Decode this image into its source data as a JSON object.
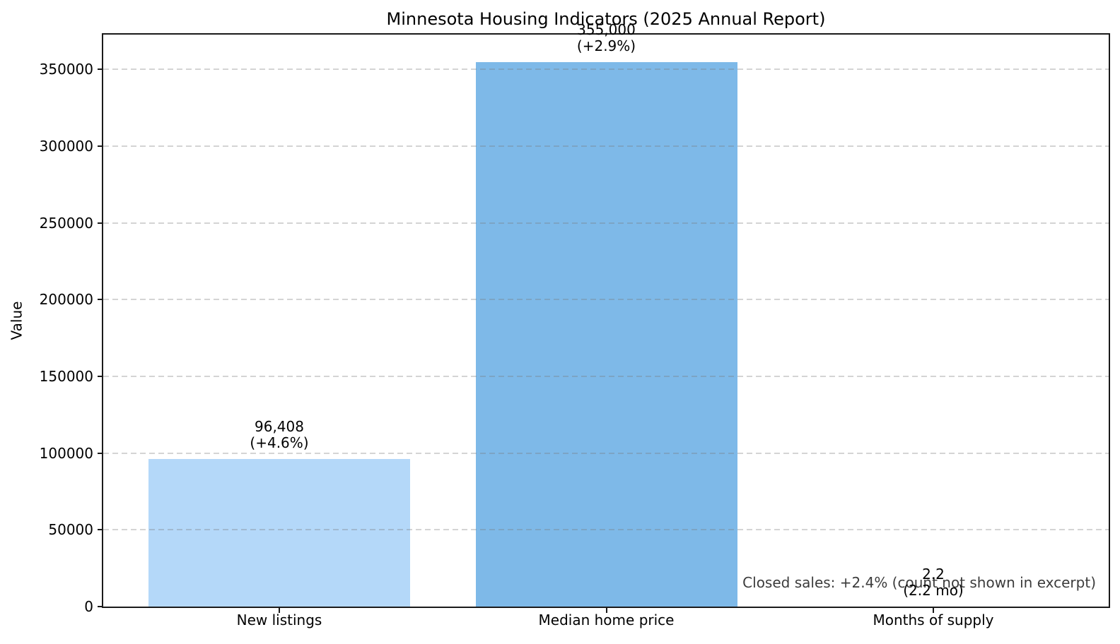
{
  "figure": {
    "background": "#ffffff"
  },
  "chart_data": {
    "type": "bar",
    "title": "Minnesota Housing Indicators (2025 Annual Report)",
    "xlabel": "",
    "ylabel": "Value",
    "categories": [
      "New listings",
      "Median home price",
      "Months of supply"
    ],
    "values": [
      96408,
      355000,
      2.2
    ],
    "bar_value_labels": [
      [
        "96,408",
        "(+4.6%)"
      ],
      [
        "355,000",
        "(+2.9%)"
      ],
      [
        "2.2",
        "(2.2 mo)"
      ]
    ],
    "bar_colors": [
      "#b4d8f9",
      "#7eb9e8",
      null
    ],
    "ylim": [
      0,
      372750
    ],
    "yticks": [
      0,
      50000,
      100000,
      150000,
      200000,
      250000,
      300000,
      350000
    ],
    "ytick_labels": [
      "0",
      "50000",
      "100000",
      "150000",
      "200000",
      "250000",
      "300000",
      "350000"
    ],
    "grid": {
      "axis": "y",
      "style": "dashed",
      "color": "#d8d8d8"
    },
    "legend": null,
    "annotation": {
      "text": "Closed sales: +2.4% (count not shown in excerpt)",
      "color": "#3c3c3c",
      "position": "bottom-right"
    }
  }
}
